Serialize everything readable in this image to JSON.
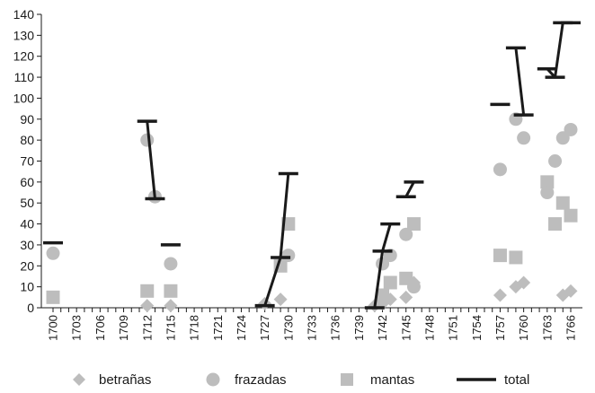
{
  "chart_data": {
    "type": "scatter",
    "title": "",
    "xlabel": "",
    "ylabel": "",
    "ylim": [
      0,
      140
    ],
    "yticks": [
      0,
      10,
      20,
      30,
      40,
      50,
      60,
      70,
      80,
      90,
      100,
      110,
      120,
      130,
      140
    ],
    "xlim": [
      1700,
      1766
    ],
    "xticks": [
      1700,
      1703,
      1706,
      1709,
      1712,
      1715,
      1718,
      1721,
      1724,
      1727,
      1730,
      1733,
      1736,
      1739,
      1742,
      1745,
      1748,
      1751,
      1754,
      1757,
      1760,
      1763,
      1766
    ],
    "legend_position": "bottom",
    "grid": false,
    "series": [
      {
        "name": "betrañas",
        "marker": "diamond",
        "color": "#bdbdbd",
        "points": [
          [
            1712,
            1
          ],
          [
            1715,
            1
          ],
          [
            1727,
            2
          ],
          [
            1729,
            4
          ],
          [
            1741,
            1
          ],
          [
            1742,
            2
          ],
          [
            1743,
            4
          ],
          [
            1745,
            5
          ],
          [
            1746,
            12
          ],
          [
            1757,
            6
          ],
          [
            1759,
            10
          ],
          [
            1760,
            12
          ],
          [
            1765,
            6
          ],
          [
            1766,
            8
          ]
        ]
      },
      {
        "name": "frazadas",
        "marker": "circle",
        "color": "#bdbdbd",
        "points": [
          [
            1700,
            26
          ],
          [
            1712,
            80
          ],
          [
            1713,
            53
          ],
          [
            1715,
            21
          ],
          [
            1730,
            25
          ],
          [
            1742,
            21
          ],
          [
            1743,
            25
          ],
          [
            1745,
            35
          ],
          [
            1746,
            10
          ],
          [
            1757,
            66
          ],
          [
            1759,
            90
          ],
          [
            1760,
            81
          ],
          [
            1763,
            55
          ],
          [
            1764,
            70
          ],
          [
            1765,
            81
          ],
          [
            1766,
            85
          ]
        ]
      },
      {
        "name": "mantas",
        "marker": "square",
        "color": "#bdbdbd",
        "points": [
          [
            1700,
            5
          ],
          [
            1712,
            8
          ],
          [
            1715,
            8
          ],
          [
            1729,
            20
          ],
          [
            1730,
            40
          ],
          [
            1742,
            6
          ],
          [
            1743,
            12
          ],
          [
            1745,
            14
          ],
          [
            1746,
            40
          ],
          [
            1757,
            25
          ],
          [
            1759,
            24
          ],
          [
            1763,
            60
          ],
          [
            1764,
            40
          ],
          [
            1765,
            50
          ],
          [
            1766,
            44
          ]
        ]
      },
      {
        "name": "total",
        "marker": "dash-line",
        "color": "#1a1a1a",
        "segments": [
          [
            [
              1700,
              31
            ]
          ],
          [
            [
              1712,
              89
            ],
            [
              1713,
              52
            ]
          ],
          [
            [
              1715,
              30
            ]
          ],
          [
            [
              1727,
              1
            ],
            [
              1729,
              24
            ],
            [
              1730,
              64
            ]
          ],
          [
            [
              1741,
              0
            ],
            [
              1742,
              27
            ],
            [
              1743,
              40
            ]
          ],
          [
            [
              1745,
              53
            ],
            [
              1746,
              60
            ]
          ],
          [
            [
              1757,
              97
            ]
          ],
          [
            [
              1759,
              124
            ],
            [
              1760,
              92
            ]
          ],
          [
            [
              1763,
              114
            ],
            [
              1764,
              110
            ],
            [
              1765,
              136
            ],
            [
              1766,
              136
            ]
          ]
        ]
      }
    ]
  }
}
